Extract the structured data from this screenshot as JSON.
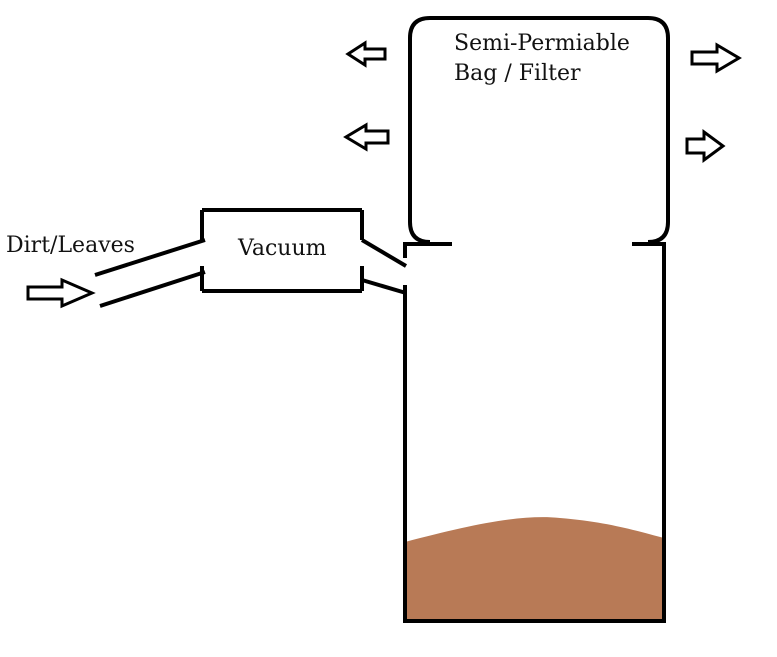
{
  "labels": {
    "dirt": "Dirt/Leaves",
    "vacuum": "Vacuum",
    "bag_line1": "Semi-Permiable",
    "bag_line2": "Bag / Filter"
  },
  "colors": {
    "dirt_fill": "#b87a56",
    "line": "#000000",
    "background": "#ffffff"
  },
  "icons": {
    "inflow_arrow": "arrow-right-icon",
    "outflow_left_arrow": "arrow-left-icon",
    "outflow_right_arrow": "arrow-right-icon"
  }
}
